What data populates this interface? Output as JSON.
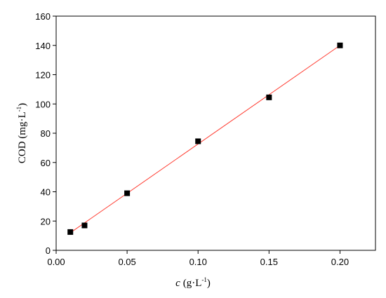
{
  "chart_data": {
    "type": "scatter",
    "xlabel": [
      "c",
      "(g·L",
      "-1",
      ")"
    ],
    "ylabel": [
      "COD (mg·L",
      "-1",
      ")"
    ],
    "x": [
      0.01,
      0.02,
      0.05,
      0.1,
      0.15,
      0.2
    ],
    "values": [
      12.5,
      17,
      39,
      74.5,
      104.5,
      140
    ],
    "color": "#000000",
    "fit": {
      "x": [
        0.01,
        0.2
      ],
      "values": [
        12,
        140
      ],
      "color": "#ff3b30"
    },
    "xlim": [
      0,
      0.225
    ],
    "ylim": [
      0,
      160
    ],
    "xticks": [
      {
        "value": 0,
        "label": "0.00"
      },
      {
        "value": 0.05,
        "label": "0.05"
      },
      {
        "value": 0.1,
        "label": "0.10"
      },
      {
        "value": 0.15,
        "label": "0.15"
      },
      {
        "value": 0.2,
        "label": "0.20"
      }
    ],
    "yticks": [
      0,
      20,
      40,
      60,
      80,
      100,
      120,
      140,
      160
    ]
  }
}
